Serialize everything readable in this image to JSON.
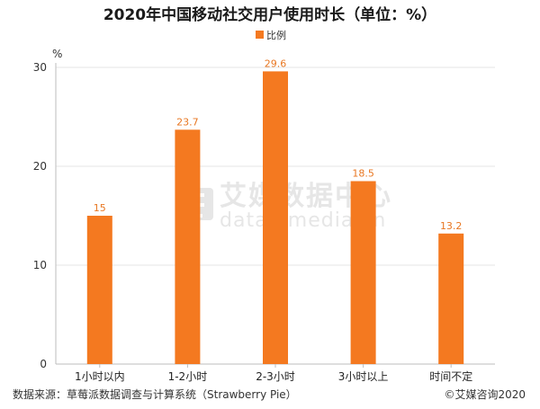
{
  "chart_data": {
    "type": "bar",
    "title": "2020年中国移动社交用户使用时长（单位：%）",
    "unit_label": "%",
    "legend": [
      "比例"
    ],
    "categories": [
      "1小时以内",
      "1-2小时",
      "2-3小时",
      "3小时以上",
      "时间不定"
    ],
    "series": [
      {
        "name": "比例",
        "values": [
          15,
          23.7,
          29.6,
          18.5,
          13.2
        ]
      }
    ],
    "data_labels": [
      "15",
      "23.7",
      "29.6",
      "18.5",
      "13.2"
    ],
    "ylim": [
      0,
      30
    ],
    "yticks": [
      0,
      10,
      20,
      30
    ],
    "grid": true,
    "legend_position": "top-center",
    "colors": {
      "bar": "#f47920",
      "label": "#e87722",
      "grid": "#e6e6e6"
    }
  },
  "footer": {
    "source": "数据来源：草莓派数据调查与计算系统（Strawberry Pie）",
    "copyright": "©艾媒咨询2020"
  },
  "watermark": {
    "name": "艾媒数据中心",
    "url": "data.iimedia.cn"
  }
}
